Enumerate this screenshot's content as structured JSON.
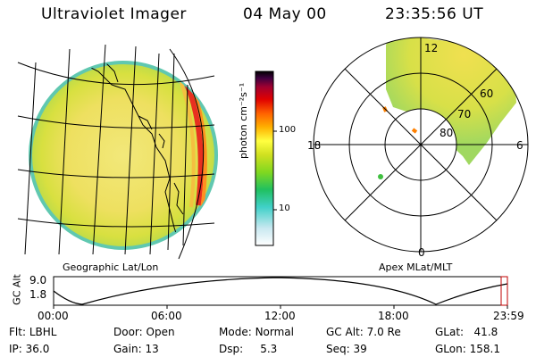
{
  "header": {
    "instrument": "Ultraviolet Imager",
    "date": "04 May 00",
    "time": "23:35:56 UT"
  },
  "colorbar": {
    "unit_label": "photon cm⁻²s⁻¹",
    "ticks": [
      "100",
      "10"
    ],
    "scale": "log",
    "colors": [
      "#ffffff",
      "#c8e8f0",
      "#40d0c8",
      "#20c060",
      "#80d820",
      "#d0e020",
      "#ffff40",
      "#ffb000",
      "#ff6000",
      "#e00000",
      "#a00030",
      "#400040",
      "#000000"
    ]
  },
  "left_panel": {
    "caption": "Geographic Lat/Lon"
  },
  "right_panel": {
    "caption": "Apex MLat/MLT",
    "mlt_labels": [
      "12",
      "18",
      "6",
      "0"
    ],
    "lat_labels": [
      "60",
      "70",
      "80"
    ]
  },
  "altitude_plot": {
    "ylabel": "GC Alt",
    "yticks": [
      "9.0",
      "1.8"
    ],
    "xticks": [
      "00:00",
      "06:00",
      "12:00",
      "18:00",
      "23:59"
    ]
  },
  "footer": {
    "rows": [
      [
        {
          "label": "Flt:",
          "value": "LBHL"
        },
        {
          "label": "Door:",
          "value": "Open"
        },
        {
          "label": "Mode:",
          "value": "Normal"
        },
        {
          "label": "GC Alt:",
          "value": "7.0 Re"
        },
        {
          "label": "GLat:",
          "value": "41.8"
        }
      ],
      [
        {
          "label": "IP:",
          "value": "36.0"
        },
        {
          "label": "Gain:",
          "value": "13"
        },
        {
          "label": "Dsp:",
          "value": "5.3"
        },
        {
          "label": "Seq:",
          "value": "39"
        },
        {
          "label": "GLon:",
          "value": "158.1"
        }
      ]
    ]
  }
}
